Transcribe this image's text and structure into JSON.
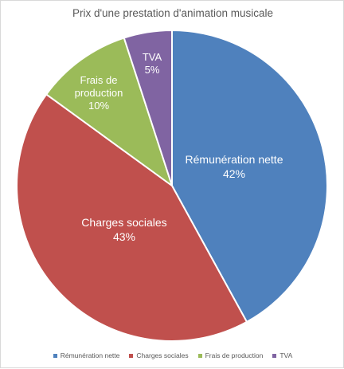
{
  "chart_data": {
    "type": "pie",
    "title": "Prix d'une prestation d'animation musicale",
    "slices": [
      {
        "label": "Rémunération nette",
        "display": [
          "Rémunération nette",
          "42%"
        ],
        "value": 42,
        "color": "#4f81bd"
      },
      {
        "label": "Charges sociales",
        "display": [
          "Charges sociales",
          "43%"
        ],
        "value": 43,
        "color": "#c0504d"
      },
      {
        "label": "Frais de production",
        "display": [
          "Frais de",
          "production",
          "10%"
        ],
        "value": 10,
        "color": "#9bbb59"
      },
      {
        "label": "TVA",
        "display": [
          "TVA",
          "5%"
        ],
        "value": 5,
        "color": "#8064a2"
      }
    ],
    "start": "12 o'clock",
    "direction": "clockwise",
    "legend": "bottom"
  }
}
